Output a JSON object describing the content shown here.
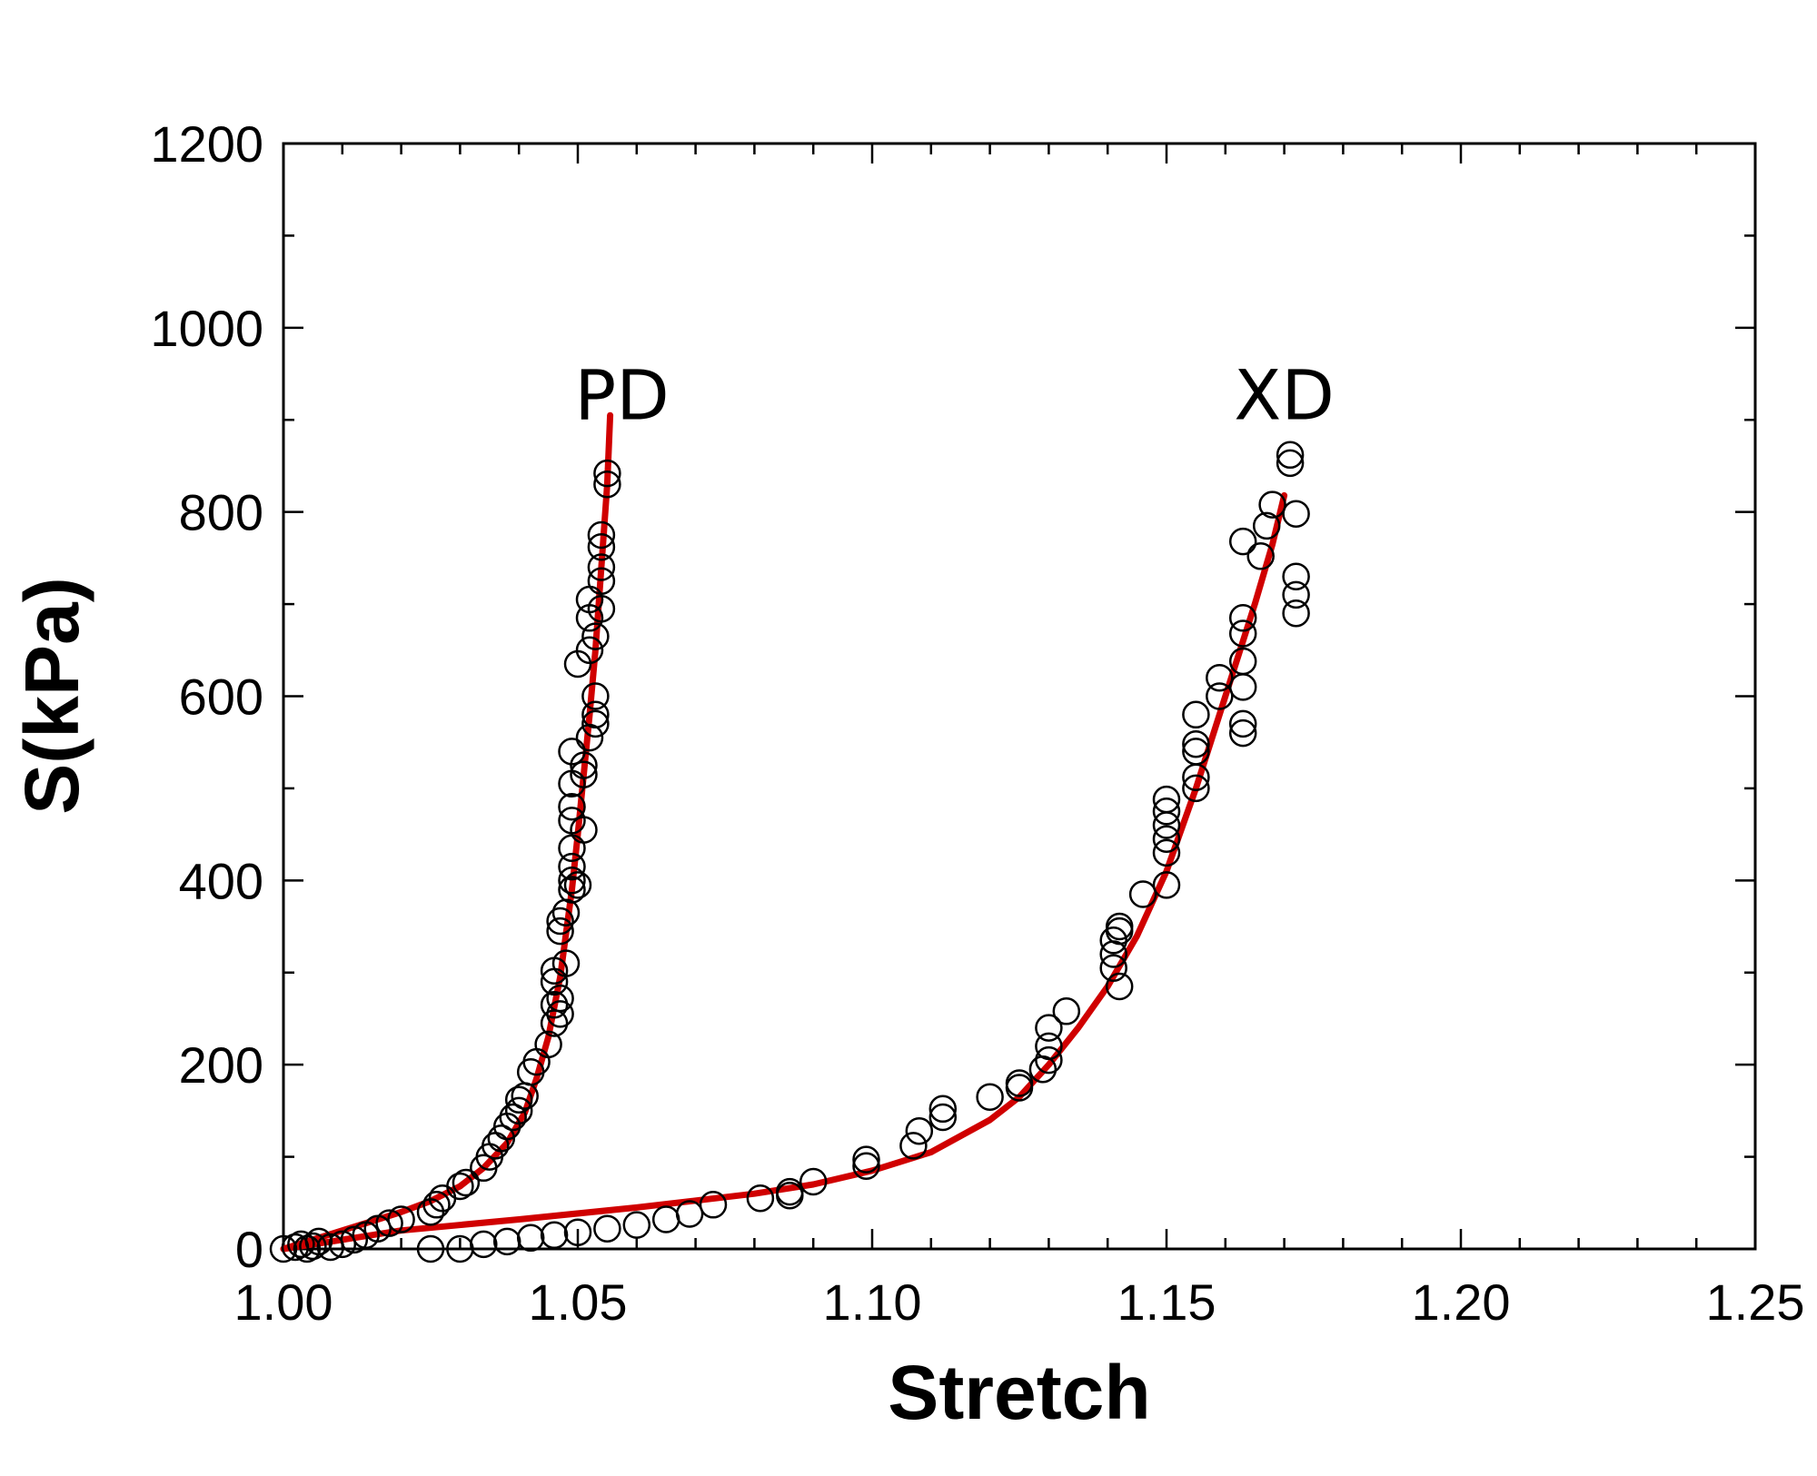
{
  "chart_data": {
    "type": "scatter",
    "title": "",
    "xlabel": "Stretch",
    "ylabel": "S(kPa)",
    "xlim": [
      1.0,
      1.25
    ],
    "ylim": [
      0,
      1200
    ],
    "x_ticks": [
      "1.00",
      "1.05",
      "1.10",
      "1.15",
      "1.20",
      "1.25"
    ],
    "y_ticks": [
      "0",
      "200",
      "400",
      "600",
      "800",
      "1000",
      "1200"
    ],
    "grid": false,
    "legend": "none",
    "colors": {
      "fit": "#d00000",
      "markers": "#000000"
    },
    "annotations": [
      {
        "text": "PD",
        "x": 1.0575,
        "y": 950
      },
      {
        "text": "XD",
        "x": 1.17,
        "y": 950
      }
    ],
    "series": [
      {
        "kind": "scatter",
        "points": [
          [
            1.0,
            0
          ],
          [
            1.002,
            2
          ],
          [
            1.003,
            5
          ],
          [
            1.004,
            0
          ],
          [
            1.005,
            3
          ],
          [
            1.006,
            8
          ],
          [
            1.008,
            2
          ],
          [
            1.01,
            5
          ],
          [
            1.012,
            10
          ],
          [
            1.014,
            15
          ],
          [
            1.016,
            22
          ],
          [
            1.018,
            28
          ],
          [
            1.02,
            32
          ],
          [
            1.025,
            40
          ],
          [
            1.026,
            48
          ],
          [
            1.027,
            55
          ],
          [
            1.03,
            68
          ],
          [
            1.031,
            72
          ],
          [
            1.034,
            88
          ],
          [
            1.035,
            100
          ],
          [
            1.036,
            112
          ],
          [
            1.037,
            120
          ],
          [
            1.038,
            133
          ],
          [
            1.039,
            143
          ],
          [
            1.04,
            150
          ],
          [
            1.04,
            162
          ],
          [
            1.041,
            166
          ],
          [
            1.042,
            192
          ],
          [
            1.043,
            203
          ],
          [
            1.045,
            222
          ],
          [
            1.046,
            245
          ],
          [
            1.046,
            265
          ],
          [
            1.046,
            290
          ],
          [
            1.046,
            302
          ],
          [
            1.047,
            255
          ],
          [
            1.047,
            272
          ],
          [
            1.048,
            310
          ],
          [
            1.047,
            345
          ],
          [
            1.047,
            356
          ],
          [
            1.048,
            365
          ],
          [
            1.049,
            390
          ],
          [
            1.049,
            400
          ],
          [
            1.049,
            415
          ],
          [
            1.049,
            435
          ],
          [
            1.049,
            465
          ],
          [
            1.049,
            480
          ],
          [
            1.049,
            505
          ],
          [
            1.049,
            540
          ],
          [
            1.05,
            395
          ],
          [
            1.051,
            455
          ],
          [
            1.051,
            515
          ],
          [
            1.051,
            525
          ],
          [
            1.052,
            555
          ],
          [
            1.05,
            635
          ],
          [
            1.053,
            570
          ],
          [
            1.053,
            580
          ],
          [
            1.053,
            600
          ],
          [
            1.052,
            650
          ],
          [
            1.053,
            665
          ],
          [
            1.052,
            685
          ],
          [
            1.052,
            705
          ],
          [
            1.054,
            725
          ],
          [
            1.054,
            740
          ],
          [
            1.054,
            762
          ],
          [
            1.054,
            775
          ],
          [
            1.054,
            695
          ],
          [
            1.055,
            830
          ],
          [
            1.055,
            842
          ],
          [
            1.025,
            0
          ],
          [
            1.03,
            0
          ],
          [
            1.034,
            5
          ],
          [
            1.038,
            8
          ],
          [
            1.042,
            12
          ],
          [
            1.046,
            15
          ],
          [
            1.05,
            18
          ],
          [
            1.055,
            22
          ],
          [
            1.06,
            26
          ],
          [
            1.065,
            32
          ],
          [
            1.069,
            38
          ],
          [
            1.073,
            48
          ],
          [
            1.081,
            55
          ],
          [
            1.086,
            58
          ],
          [
            1.086,
            62
          ],
          [
            1.09,
            73
          ],
          [
            1.099,
            90
          ],
          [
            1.099,
            97
          ],
          [
            1.107,
            112
          ],
          [
            1.108,
            128
          ],
          [
            1.112,
            143
          ],
          [
            1.112,
            152
          ],
          [
            1.12,
            165
          ],
          [
            1.125,
            175
          ],
          [
            1.125,
            180
          ],
          [
            1.129,
            195
          ],
          [
            1.13,
            205
          ],
          [
            1.13,
            220
          ],
          [
            1.13,
            240
          ],
          [
            1.133,
            258
          ],
          [
            1.142,
            285
          ],
          [
            1.141,
            305
          ],
          [
            1.141,
            320
          ],
          [
            1.141,
            335
          ],
          [
            1.142,
            345
          ],
          [
            1.142,
            350
          ],
          [
            1.146,
            385
          ],
          [
            1.15,
            395
          ],
          [
            1.15,
            430
          ],
          [
            1.15,
            445
          ],
          [
            1.15,
            460
          ],
          [
            1.15,
            475
          ],
          [
            1.15,
            488
          ],
          [
            1.155,
            500
          ],
          [
            1.155,
            512
          ],
          [
            1.155,
            540
          ],
          [
            1.155,
            548
          ],
          [
            1.155,
            580
          ],
          [
            1.159,
            600
          ],
          [
            1.159,
            620
          ],
          [
            1.163,
            560
          ],
          [
            1.163,
            570
          ],
          [
            1.163,
            610
          ],
          [
            1.163,
            638
          ],
          [
            1.163,
            668
          ],
          [
            1.163,
            685
          ],
          [
            1.163,
            768
          ],
          [
            1.166,
            752
          ],
          [
            1.167,
            785
          ],
          [
            1.168,
            808
          ],
          [
            1.172,
            690
          ],
          [
            1.172,
            710
          ],
          [
            1.172,
            730
          ],
          [
            1.172,
            798
          ],
          [
            1.171,
            853
          ],
          [
            1.171,
            862
          ]
        ]
      },
      {
        "kind": "line",
        "label": "PD",
        "points": [
          [
            1.0,
            0
          ],
          [
            1.005,
            10
          ],
          [
            1.01,
            20
          ],
          [
            1.015,
            30
          ],
          [
            1.02,
            40
          ],
          [
            1.025,
            52
          ],
          [
            1.03,
            68
          ],
          [
            1.034,
            88
          ],
          [
            1.038,
            115
          ],
          [
            1.041,
            148
          ],
          [
            1.043,
            185
          ],
          [
            1.045,
            230
          ],
          [
            1.047,
            295
          ],
          [
            1.049,
            390
          ],
          [
            1.05,
            450
          ],
          [
            1.051,
            515
          ],
          [
            1.052,
            580
          ],
          [
            1.053,
            650
          ],
          [
            1.054,
            740
          ],
          [
            1.055,
            830
          ],
          [
            1.0555,
            905
          ]
        ]
      },
      {
        "kind": "line",
        "label": "XD",
        "points": [
          [
            1.0,
            0
          ],
          [
            1.01,
            10
          ],
          [
            1.02,
            20
          ],
          [
            1.04,
            32
          ],
          [
            1.06,
            45
          ],
          [
            1.08,
            60
          ],
          [
            1.09,
            70
          ],
          [
            1.1,
            85
          ],
          [
            1.11,
            105
          ],
          [
            1.12,
            140
          ],
          [
            1.125,
            165
          ],
          [
            1.13,
            200
          ],
          [
            1.135,
            240
          ],
          [
            1.14,
            285
          ],
          [
            1.145,
            340
          ],
          [
            1.15,
            410
          ],
          [
            1.155,
            500
          ],
          [
            1.16,
            600
          ],
          [
            1.165,
            700
          ],
          [
            1.168,
            765
          ],
          [
            1.17,
            818
          ]
        ]
      }
    ]
  }
}
